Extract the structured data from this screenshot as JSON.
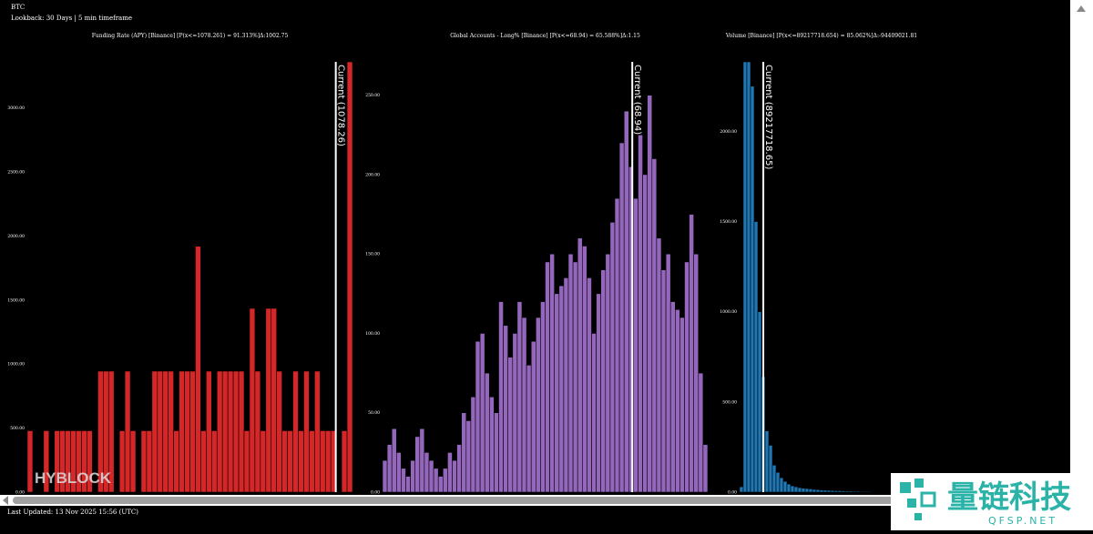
{
  "header": {
    "title": "BTC",
    "subtitle": "Lookback: 30 Days | 5 min timeframe"
  },
  "footer": "Last Updated: 13 Nov 2025 15:56 (UTC)",
  "watermarks": {
    "chart": "HYBLOCK",
    "brand": "量链科技",
    "site": "QFSP.NET"
  },
  "chart_data": [
    {
      "type": "histogram",
      "title": "Funding Rate (APY) [Binance] [P(x<=1078.261) = 91.313%]Δ:1002.75",
      "color": "#d62728",
      "bins": [
        -800,
        -767,
        -734,
        -701,
        -668,
        -635,
        -602,
        -569,
        -536,
        -503,
        -470,
        -437,
        -404,
        -371,
        -338,
        -305,
        -272,
        -239,
        -206,
        -173,
        -140,
        -107,
        -74,
        -41,
        -8,
        25,
        58,
        91,
        124,
        157,
        190,
        223,
        256,
        289,
        322,
        355,
        388,
        421,
        454,
        487,
        520,
        553,
        586,
        619,
        652,
        685,
        718,
        751,
        784,
        817,
        850,
        883,
        916,
        949,
        982,
        1015,
        1048,
        1081,
        1114,
        1147,
        1180
      ],
      "values": [
        480,
        0,
        0,
        480,
        0,
        480,
        480,
        480,
        480,
        480,
        480,
        480,
        0,
        945,
        945,
        945,
        0,
        480,
        945,
        480,
        0,
        480,
        480,
        945,
        945,
        945,
        945,
        480,
        945,
        945,
        945,
        1920,
        480,
        945,
        480,
        945,
        945,
        945,
        945,
        945,
        480,
        1435,
        945,
        480,
        1435,
        1435,
        945,
        480,
        480,
        945,
        480,
        945,
        480,
        945,
        480,
        480,
        480,
        0,
        480,
        3360
      ],
      "ylim": [
        0,
        3360
      ],
      "yticks": [
        {
          "value": 0,
          "label": "0.00"
        },
        {
          "value": 500,
          "label": "500.00"
        },
        {
          "value": 1000,
          "label": "1000.00"
        },
        {
          "value": 1500,
          "label": "1500.00"
        },
        {
          "value": 2000,
          "label": "2000.00"
        },
        {
          "value": 2500,
          "label": "2500.00"
        },
        {
          "value": 3000,
          "label": "3000.00"
        }
      ],
      "current": {
        "value": 1078.26,
        "label": "Current (1078.26)"
      }
    },
    {
      "type": "histogram",
      "title": "Global Accounts - Long% [Binance] [P(x<=68.94) = 65.588%]Δ:1.15",
      "color": "#9467bd",
      "bins": [
        55.5,
        55.75,
        56,
        56.25,
        56.5,
        56.75,
        57,
        57.25,
        57.5,
        57.75,
        58,
        58.25,
        58.5,
        58.75,
        59,
        59.25,
        59.5,
        59.75,
        60,
        60.25,
        60.5,
        60.75,
        61,
        61.25,
        61.5,
        61.75,
        62,
        62.25,
        62.5,
        62.75,
        63,
        63.25,
        63.5,
        63.75,
        64,
        64.25,
        64.5,
        64.75,
        65,
        65.25,
        65.5,
        65.75,
        66,
        66.25,
        66.5,
        66.75,
        67,
        67.25,
        67.5,
        67.75,
        68,
        68.25,
        68.5,
        68.75,
        69,
        69.25,
        69.5,
        69.75,
        70,
        70.25,
        70.5,
        70.75,
        71,
        71.25,
        71.5,
        71.75,
        72,
        72.25,
        72.5,
        72.75,
        73
      ],
      "values": [
        20,
        30,
        40,
        25,
        15,
        10,
        20,
        35,
        40,
        25,
        20,
        15,
        10,
        15,
        25,
        20,
        30,
        50,
        45,
        60,
        95,
        100,
        75,
        60,
        50,
        120,
        105,
        85,
        100,
        120,
        110,
        80,
        95,
        110,
        120,
        145,
        150,
        125,
        130,
        135,
        150,
        145,
        160,
        155,
        135,
        100,
        125,
        140,
        150,
        170,
        185,
        220,
        240,
        205,
        185,
        225,
        200,
        250,
        210,
        160,
        140,
        150,
        120,
        115,
        110,
        145,
        175,
        150,
        75,
        30
      ],
      "ylim": [
        0,
        271
      ],
      "yticks": [
        {
          "value": 0,
          "label": "0.00"
        },
        {
          "value": 50,
          "label": "50.00"
        },
        {
          "value": 100,
          "label": "100.00"
        },
        {
          "value": 150,
          "label": "150.00"
        },
        {
          "value": 200,
          "label": "200.00"
        },
        {
          "value": 250,
          "label": "250.00"
        }
      ],
      "current": {
        "value": 68.94,
        "label": "Current (68.94)"
      }
    },
    {
      "type": "histogram",
      "title": "Volume [Binance] [P(x<=89217718.654) = 85.062%]Δ:-94409021.81",
      "color": "#1f77b4",
      "bins": [
        0,
        13700000,
        27400000,
        41100000,
        54800000,
        68500000,
        82200000,
        95900000,
        109600000,
        123300000,
        137000000,
        150700000,
        164400000,
        178100000,
        191800000,
        205500000,
        219200000,
        232900000,
        246600000,
        260300000,
        274000000,
        287700000,
        301400000,
        315100000,
        328800000,
        342500000,
        356200000,
        369900000,
        383600000,
        397300000,
        411000000,
        424700000,
        438400000,
        452100000,
        465800000,
        479500000,
        493200000,
        506900000,
        520600000,
        534300000,
        548000000,
        561700000,
        575400000,
        589100000,
        602800000,
        616500000
      ],
      "values": [
        30,
        2385,
        2385,
        2250,
        1500,
        1000,
        640,
        340,
        260,
        150,
        110,
        80,
        60,
        45,
        35,
        30,
        25,
        22,
        20,
        18,
        15,
        14,
        12,
        11,
        10,
        9,
        8,
        8,
        7,
        6,
        6,
        5,
        5,
        4,
        4,
        4,
        3,
        3,
        3,
        2,
        2,
        2,
        2,
        1,
        1
      ],
      "ylim": [
        0,
        2385
      ],
      "yticks": [
        {
          "value": 0,
          "label": "0.00"
        },
        {
          "value": 500,
          "label": "500.00"
        },
        {
          "value": 1000,
          "label": "1000.00"
        },
        {
          "value": 1500,
          "label": "1500.00"
        },
        {
          "value": 2000,
          "label": "2000.00"
        }
      ],
      "current": {
        "value": 89217718.65,
        "label": "Current (89217718.65)"
      }
    }
  ]
}
